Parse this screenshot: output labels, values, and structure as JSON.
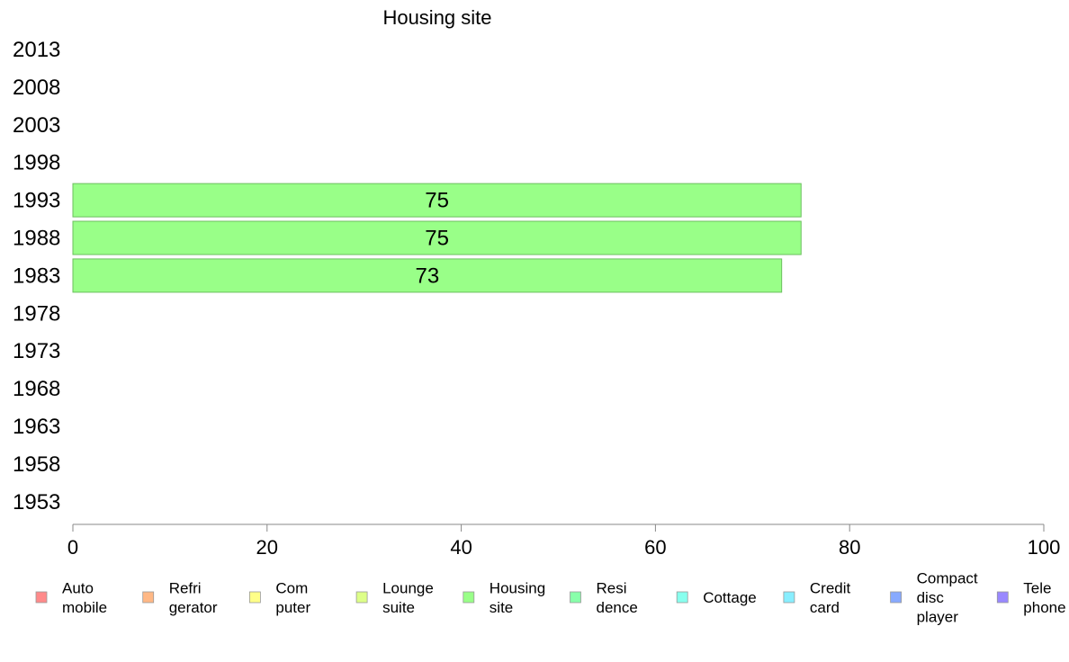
{
  "chart_data": {
    "type": "bar",
    "orientation": "horizontal",
    "title": "Housing site",
    "xlabel": "",
    "ylabel": "",
    "categories": [
      "2013",
      "2008",
      "2003",
      "1998",
      "1993",
      "1988",
      "1983",
      "1978",
      "1973",
      "1968",
      "1963",
      "1958",
      "1953"
    ],
    "series": [
      {
        "name": "Housing site",
        "color": "#99ff88",
        "values": [
          null,
          null,
          null,
          null,
          75,
          75,
          73,
          null,
          null,
          null,
          null,
          null,
          null
        ],
        "value_labels": [
          "",
          "",
          "",
          "",
          "75",
          "75",
          "73",
          "",
          "",
          "",
          "",
          "",
          ""
        ]
      }
    ],
    "xlim": [
      0,
      100
    ],
    "xticks": [
      "0",
      "20",
      "40",
      "60",
      "80",
      "100"
    ],
    "grid": false,
    "legend_position": "bottom",
    "legend": [
      {
        "lines": [
          "Auto",
          "mobile"
        ],
        "color": "#ff8a8a"
      },
      {
        "lines": [
          "Refri",
          "gerator"
        ],
        "color": "#ffb885"
      },
      {
        "lines": [
          "Com",
          "puter"
        ],
        "color": "#ffff88"
      },
      {
        "lines": [
          "Lounge",
          "suite"
        ],
        "color": "#ddff88"
      },
      {
        "lines": [
          "Housing",
          "site"
        ],
        "color": "#99ff88"
      },
      {
        "lines": [
          "Resi",
          "dence"
        ],
        "color": "#88ffaa"
      },
      {
        "lines": [
          "Cottage"
        ],
        "color": "#88ffee"
      },
      {
        "lines": [
          "Credit",
          "card"
        ],
        "color": "#88eeff"
      },
      {
        "lines": [
          "Compact",
          "disc",
          "player"
        ],
        "color": "#88aaff"
      },
      {
        "lines": [
          "Tele",
          "phone"
        ],
        "color": "#9988ff"
      }
    ]
  }
}
